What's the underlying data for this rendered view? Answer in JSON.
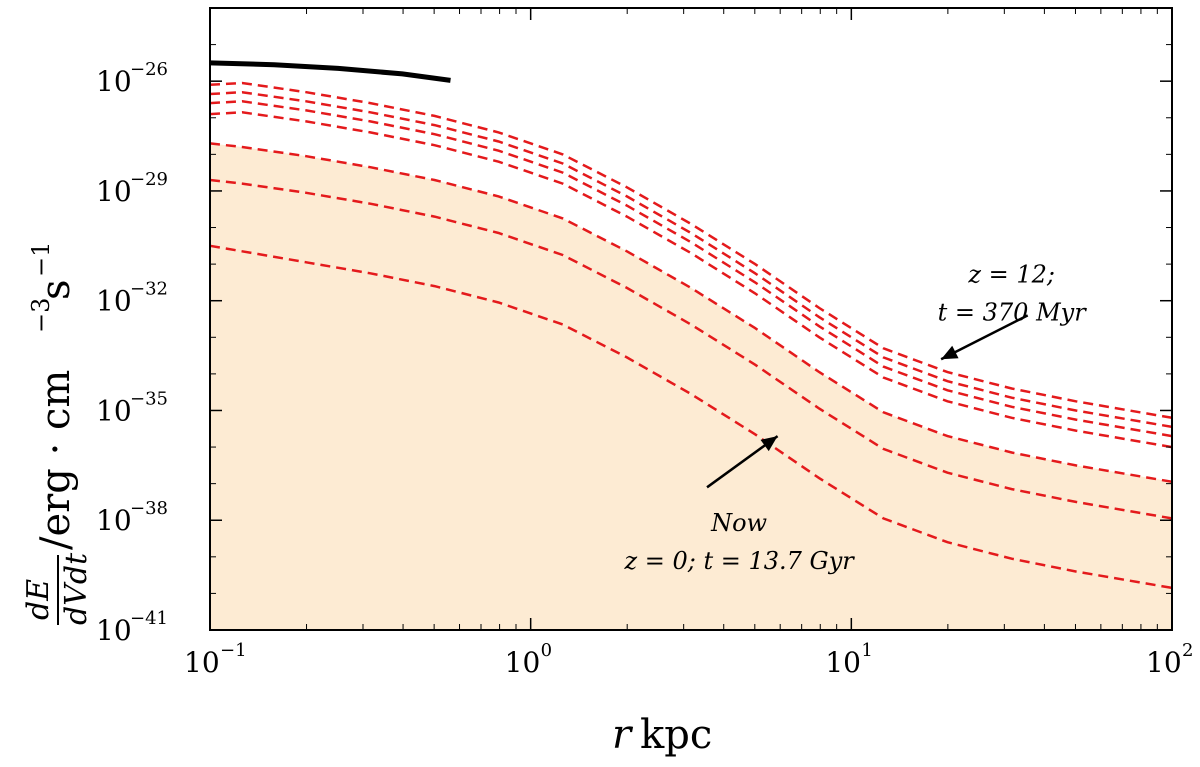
{
  "chart_data": {
    "type": "line",
    "title": "",
    "xlabel": "r/kpc",
    "xlabel_var": "r",
    "xlabel_unit": "kpc",
    "ylabel": "dE/dVdt / erg · cm^-3 s^-1",
    "ylabel_frac_num": "dE",
    "ylabel_frac_den": "dVdt",
    "ylabel_unit": "/erg · cm",
    "ylabel_unit_exp": "−3",
    "ylabel_unit_s": "s",
    "ylabel_unit_s_exp": "−1",
    "xscale": "log",
    "yscale": "log",
    "xlim": [
      0.1,
      100
    ],
    "ylim": [
      1e-41,
      1e-24
    ],
    "x_ticks": [
      {
        "base": "10",
        "exp": "−1",
        "value": 0.1
      },
      {
        "base": "10",
        "exp": "0",
        "value": 1
      },
      {
        "base": "10",
        "exp": "1",
        "value": 10
      },
      {
        "base": "10",
        "exp": "2",
        "value": 100
      }
    ],
    "y_ticks": [
      {
        "base": "10",
        "exp": "−41",
        "value": -41
      },
      {
        "base": "10",
        "exp": "−38",
        "value": -38
      },
      {
        "base": "10",
        "exp": "−35",
        "value": -35
      },
      {
        "base": "10",
        "exp": "−32",
        "value": -32
      },
      {
        "base": "10",
        "exp": "−29",
        "value": -29
      },
      {
        "base": "10",
        "exp": "−26",
        "value": -26
      }
    ],
    "fill_color": "#fdebd3",
    "black_curve": {
      "name": "black-solid",
      "color": "#000000",
      "log10_x": [
        -1.0,
        -0.8,
        -0.6,
        -0.4,
        -0.25
      ],
      "log10_y": [
        -25.5,
        -25.55,
        -25.65,
        -25.8,
        -25.98
      ]
    },
    "series": [
      {
        "name": "z = 12; t = 370 Myr",
        "color": "#e41a1c",
        "log10_x": [
          -1.0,
          -0.9,
          -0.7,
          -0.5,
          -0.3,
          -0.1,
          0.1,
          0.3,
          0.5,
          0.7,
          0.9,
          1.1,
          1.3,
          1.5,
          1.7,
          1.9,
          2.0
        ],
        "log10_y": [
          -26.1,
          -26.05,
          -26.3,
          -26.6,
          -26.95,
          -27.4,
          -28.0,
          -28.9,
          -29.9,
          -31.0,
          -32.2,
          -33.3,
          -33.95,
          -34.4,
          -34.75,
          -35.05,
          -35.2
        ]
      },
      {
        "name": "series-2",
        "color": "#e41a1c",
        "log10_x": [
          -1.0,
          -0.9,
          -0.7,
          -0.5,
          -0.3,
          -0.1,
          0.1,
          0.3,
          0.5,
          0.7,
          0.9,
          1.1,
          1.3,
          1.5,
          1.7,
          1.9,
          2.0
        ],
        "log10_y": [
          -26.35,
          -26.3,
          -26.55,
          -26.85,
          -27.2,
          -27.65,
          -28.25,
          -29.15,
          -30.15,
          -31.25,
          -32.45,
          -33.55,
          -34.2,
          -34.65,
          -35.0,
          -35.3,
          -35.45
        ]
      },
      {
        "name": "series-3",
        "color": "#e41a1c",
        "log10_x": [
          -1.0,
          -0.9,
          -0.7,
          -0.5,
          -0.3,
          -0.1,
          0.1,
          0.3,
          0.5,
          0.7,
          0.9,
          1.1,
          1.3,
          1.5,
          1.7,
          1.9,
          2.0
        ],
        "log10_y": [
          -26.6,
          -26.55,
          -26.8,
          -27.1,
          -27.45,
          -27.9,
          -28.5,
          -29.4,
          -30.4,
          -31.5,
          -32.7,
          -33.8,
          -34.45,
          -34.9,
          -35.25,
          -35.55,
          -35.7
        ]
      },
      {
        "name": "series-4",
        "color": "#e41a1c",
        "log10_x": [
          -1.0,
          -0.9,
          -0.7,
          -0.5,
          -0.3,
          -0.1,
          0.1,
          0.3,
          0.5,
          0.7,
          0.9,
          1.1,
          1.3,
          1.5,
          1.7,
          1.9,
          2.0
        ],
        "log10_y": [
          -26.9,
          -26.85,
          -27.1,
          -27.4,
          -27.75,
          -28.2,
          -28.8,
          -29.7,
          -30.7,
          -31.8,
          -33.0,
          -34.1,
          -34.75,
          -35.2,
          -35.55,
          -35.85,
          -36.0
        ]
      },
      {
        "name": "series-5",
        "color": "#e41a1c",
        "log10_x": [
          -1.0,
          -0.9,
          -0.7,
          -0.5,
          -0.3,
          -0.1,
          0.1,
          0.3,
          0.5,
          0.7,
          0.9,
          1.1,
          1.3,
          1.5,
          1.7,
          1.9,
          2.0
        ],
        "log10_y": [
          -27.7,
          -27.8,
          -28.05,
          -28.35,
          -28.7,
          -29.15,
          -29.75,
          -30.65,
          -31.65,
          -32.75,
          -33.95,
          -35.05,
          -35.7,
          -36.15,
          -36.5,
          -36.8,
          -36.95
        ]
      },
      {
        "name": "series-6",
        "color": "#e41a1c",
        "log10_x": [
          -1.0,
          -0.9,
          -0.7,
          -0.5,
          -0.3,
          -0.1,
          0.1,
          0.3,
          0.5,
          0.7,
          0.9,
          1.1,
          1.3,
          1.5,
          1.7,
          1.9,
          2.0
        ],
        "log10_y": [
          -28.7,
          -28.8,
          -29.05,
          -29.35,
          -29.7,
          -30.15,
          -30.75,
          -31.65,
          -32.65,
          -33.75,
          -34.95,
          -36.05,
          -36.7,
          -37.15,
          -37.5,
          -37.8,
          -37.95
        ]
      },
      {
        "name": "Now z = 0; t = 13.7 Gyr",
        "color": "#e41a1c",
        "log10_x": [
          -1.0,
          -0.9,
          -0.7,
          -0.5,
          -0.3,
          -0.1,
          0.1,
          0.3,
          0.5,
          0.7,
          0.9,
          1.1,
          1.3,
          1.5,
          1.7,
          1.9,
          2.0
        ],
        "log10_y": [
          -30.5,
          -30.65,
          -30.95,
          -31.25,
          -31.6,
          -32.05,
          -32.65,
          -33.55,
          -34.55,
          -35.65,
          -36.85,
          -37.95,
          -38.6,
          -39.05,
          -39.4,
          -39.7,
          -39.85
        ]
      }
    ],
    "annotations": [
      {
        "name": "annotation-top",
        "lines": [
          "z = 12;",
          "t = 370 Myr"
        ],
        "text_log10_x": 1.5,
        "text_log10_y": -31.5,
        "arrow_to_log10_x": 1.28,
        "arrow_to_log10_y": -33.6
      },
      {
        "name": "annotation-now",
        "lines": [
          "Now",
          "z = 0; t = 13.7 Gyr"
        ],
        "text_log10_x": 0.65,
        "text_log10_y": -38.3,
        "arrow_to_log10_x": 0.77,
        "arrow_to_log10_y": -35.7
      }
    ]
  }
}
